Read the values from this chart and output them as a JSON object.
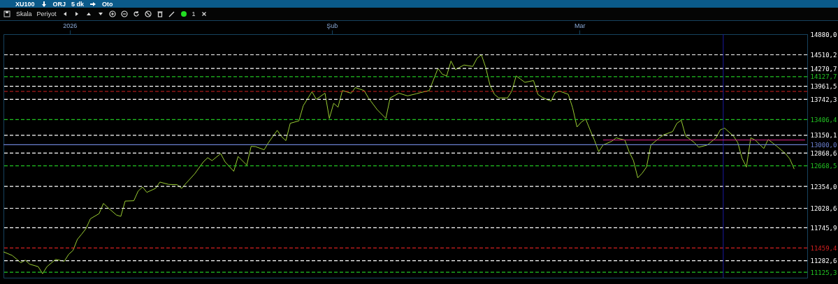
{
  "chart_data": {
    "type": "line",
    "title": "XU100",
    "annotations": [
      "ORJ",
      "5 dk",
      "Oto",
      "Skala",
      "Periyot",
      "1"
    ],
    "xlim": [
      "2025-12-26",
      "2026-03-28T12:00"
    ],
    "xticks": [
      {
        "value": "2026-01-02T15:00",
        "label": "2026"
      },
      {
        "value": "2026-02-01T19:00",
        "label": "Şub"
      },
      {
        "value": "2026-03-02T07:00",
        "label": "Mar"
      }
    ],
    "ylim": [
      11050,
      14880
    ],
    "log": true,
    "yticks": [
      {
        "value": 14880,
        "label": "14880,0"
      },
      {
        "value": 14510.2,
        "label": "14510,2"
      },
      {
        "value": 14270.7,
        "label": "14270,7"
      },
      {
        "value": 14127.7,
        "label": "14127,7"
      },
      {
        "value": 13961.5,
        "label": "13961,5"
      },
      {
        "value": 13742.3,
        "label": "13742,3"
      },
      {
        "value": 13406.4,
        "label": "13406,4"
      },
      {
        "value": 13150.1,
        "label": "13150,1"
      },
      {
        "value": 13000,
        "label": "13000,0"
      },
      {
        "value": 12868.6,
        "label": "12868,6"
      },
      {
        "value": 12668.5,
        "label": "12668,5"
      },
      {
        "value": 12354,
        "label": "12354,0"
      },
      {
        "value": 12028.6,
        "label": "12028,6"
      },
      {
        "value": 11745.9,
        "label": "11745,9"
      },
      {
        "value": 11459.4,
        "label": "11459,4"
      },
      {
        "value": 11282.6,
        "label": "11282,6"
      },
      {
        "value": 11125.3,
        "label": "11125,3"
      }
    ],
    "ref_lines": [
      {
        "axis": "y",
        "value": 14510.2,
        "color": "#ffffff",
        "line_style": "dashed"
      },
      {
        "axis": "y",
        "value": 14270.7,
        "color": "#ffffff",
        "line_style": "dashed"
      },
      {
        "axis": "y",
        "value": 14127.7,
        "color": "#22c322",
        "line_style": "dashed"
      },
      {
        "axis": "y",
        "value": 13961.5,
        "color": "#ffffff",
        "line_style": "dashed"
      },
      {
        "axis": "y",
        "value": 13875,
        "color": "#d42020",
        "line_style": "dashed"
      },
      {
        "axis": "y",
        "value": 13742.3,
        "color": "#ffffff",
        "line_style": "dashed"
      },
      {
        "axis": "y",
        "value": 13406.4,
        "color": "#22c322",
        "line_style": "dashed"
      },
      {
        "axis": "y",
        "value": 13150.1,
        "color": "#ffffff",
        "line_style": "dashed"
      },
      {
        "axis": "y",
        "value": 13000,
        "color": "#6a7fd0",
        "line_style": "solid"
      },
      {
        "axis": "y",
        "value": 12868.6,
        "color": "#ffffff",
        "line_style": "dashed"
      },
      {
        "axis": "y",
        "value": 12668.5,
        "color": "#22c322",
        "line_style": "dashed"
      },
      {
        "axis": "y",
        "value": 12354,
        "color": "#ffffff",
        "line_style": "dashed"
      },
      {
        "axis": "y",
        "value": 12028.6,
        "color": "#ffffff",
        "line_style": "dashed"
      },
      {
        "axis": "y",
        "value": 11745.9,
        "color": "#ffffff",
        "line_style": "dashed"
      },
      {
        "axis": "y",
        "value": 11459.4,
        "color": "#d42020",
        "line_style": "dashed"
      },
      {
        "axis": "y",
        "value": 11282.6,
        "color": "#ffffff",
        "line_style": "dashed"
      },
      {
        "axis": "y",
        "value": 11125.3,
        "color": "#22c322",
        "line_style": "dashed"
      },
      {
        "axis": "x",
        "value": "2026-03-18T20:00",
        "color": "#1a1aa0",
        "line_style": "solid"
      }
    ],
    "series": [
      {
        "color": "#9acd32",
        "x": [
          "2025-12-26",
          "2025-12-27",
          "2025-12-28",
          "2025-12-28T12:00",
          "2025-12-29",
          "2025-12-30",
          "2025-12-30T12:00",
          "2025-12-31",
          "2026-01-01",
          "2026-01-02",
          "2026-01-02T12:00",
          "2026-01-03",
          "2026-01-03T12:00",
          "2026-01-04",
          "2026-01-04T12:00",
          "2026-01-05",
          "2026-01-06",
          "2026-01-06T12:00",
          "2026-01-07",
          "2026-01-08",
          "2026-01-08T12:00",
          "2026-01-09",
          "2026-01-10",
          "2026-01-10T12:00",
          "2026-01-11",
          "2026-01-11T12:00",
          "2026-01-12T12:00",
          "2026-01-13",
          "2026-01-14",
          "2026-01-15",
          "2026-01-15T12:00",
          "2026-01-16",
          "2026-01-17",
          "2026-01-18",
          "2026-01-18T12:00",
          "2026-01-19",
          "2026-01-20",
          "2026-01-20T12:00",
          "2026-01-21T12:00",
          "2026-01-22",
          "2026-01-23",
          "2026-01-23T12:00",
          "2026-01-24",
          "2026-01-25",
          "2026-01-25T12:00",
          "2026-01-26T12:00",
          "2026-01-27",
          "2026-01-27T12:00",
          "2026-01-28",
          "2026-01-29",
          "2026-01-29T12:00",
          "2026-01-30T12:00",
          "2026-01-31",
          "2026-02-01",
          "2026-02-01T12:00",
          "2026-02-02",
          "2026-02-02T12:00",
          "2026-02-03",
          "2026-02-04",
          "2026-02-04T12:00",
          "2026-02-05",
          "2026-02-05T12:00",
          "2026-02-06",
          "2026-02-07",
          "2026-02-08",
          "2026-02-08T12:00",
          "2026-02-09T12:00",
          "2026-02-10T12:00",
          "2026-02-11T12:00",
          "2026-02-12",
          "2026-02-13",
          "2026-02-14",
          "2026-02-14T12:00",
          "2026-02-15",
          "2026-02-15T12:00",
          "2026-02-16",
          "2026-02-17",
          "2026-02-18",
          "2026-02-18T12:00",
          "2026-02-19",
          "2026-02-19T12:00",
          "2026-02-20",
          "2026-02-20T12:00",
          "2026-02-21",
          "2026-02-22",
          "2026-02-22T12:00",
          "2026-02-23",
          "2026-02-23T12:00",
          "2026-02-24",
          "2026-02-25",
          "2026-02-25T12:00",
          "2026-02-26",
          "2026-02-27",
          "2026-02-27T12:00",
          "2026-02-28",
          "2026-03-01",
          "2026-03-01T12:00",
          "2026-03-02",
          "2026-03-02T12:00",
          "2026-03-03",
          "2026-03-03T12:00",
          "2026-03-04",
          "2026-03-04T12:00",
          "2026-03-05",
          "2026-03-06",
          "2026-03-06T12:00",
          "2026-03-07T12:00",
          "2026-03-08",
          "2026-03-08T12:00",
          "2026-03-09",
          "2026-03-09T12:00",
          "2026-03-10",
          "2026-03-10T12:00",
          "2026-03-11T12:00",
          "2026-03-12",
          "2026-03-13",
          "2026-03-13T12:00",
          "2026-03-14",
          "2026-03-14T12:00",
          "2026-03-15T12:00",
          "2026-03-16",
          "2026-03-17",
          "2026-03-18",
          "2026-03-18T12:00",
          "2026-03-19",
          "2026-03-20",
          "2026-03-20T12:00",
          "2026-03-21",
          "2026-03-21T12:00",
          "2026-03-22",
          "2026-03-22T12:00",
          "2026-03-23T12:00",
          "2026-03-24",
          "2026-03-25",
          "2026-03-26",
          "2026-03-26T12:00",
          "2026-03-27"
        ],
        "values": [
          11405,
          11355,
          11255,
          11290,
          11235,
          11200,
          11105,
          11200,
          11300,
          11275,
          11370,
          11425,
          11580,
          11655,
          11735,
          11875,
          11950,
          12100,
          12040,
          11930,
          11910,
          12135,
          12140,
          12285,
          12345,
          12265,
          12325,
          12420,
          12385,
          12380,
          12325,
          12400,
          12545,
          12730,
          12795,
          12750,
          12860,
          12730,
          12585,
          12815,
          12680,
          12975,
          12970,
          12920,
          13035,
          13230,
          13130,
          13065,
          13345,
          13385,
          13635,
          13870,
          13742,
          13845,
          13425,
          13675,
          13610,
          13890,
          13845,
          13940,
          13915,
          13890,
          13765,
          13570,
          13425,
          13765,
          13845,
          13800,
          13835,
          13855,
          13890,
          14270,
          14170,
          14140,
          14400,
          14250,
          14330,
          14305,
          14450,
          14510,
          14285,
          13975,
          13825,
          13765,
          13765,
          13880,
          14140,
          14085,
          14030,
          14060,
          13825,
          13775,
          13710,
          13855,
          13880,
          13825,
          13600,
          13285,
          13365,
          13415,
          13240,
          13075,
          12890,
          12995,
          13055,
          13110,
          13075,
          12890,
          12750,
          12485,
          12555,
          12650,
          12995,
          13110,
          13160,
          13210,
          13345,
          13395,
          13140,
          13035,
          12960,
          12995,
          13110,
          13240,
          13265,
          13140,
          13035,
          12785,
          12650,
          13110,
          13075,
          12940,
          13085,
          12975,
          12860,
          12775,
          12620
        ]
      },
      {
        "color": "#e0208a",
        "x": [
          "2026-03-05",
          "2026-03-28T06:00"
        ],
        "values": [
          13075,
          13075
        ]
      }
    ]
  }
}
